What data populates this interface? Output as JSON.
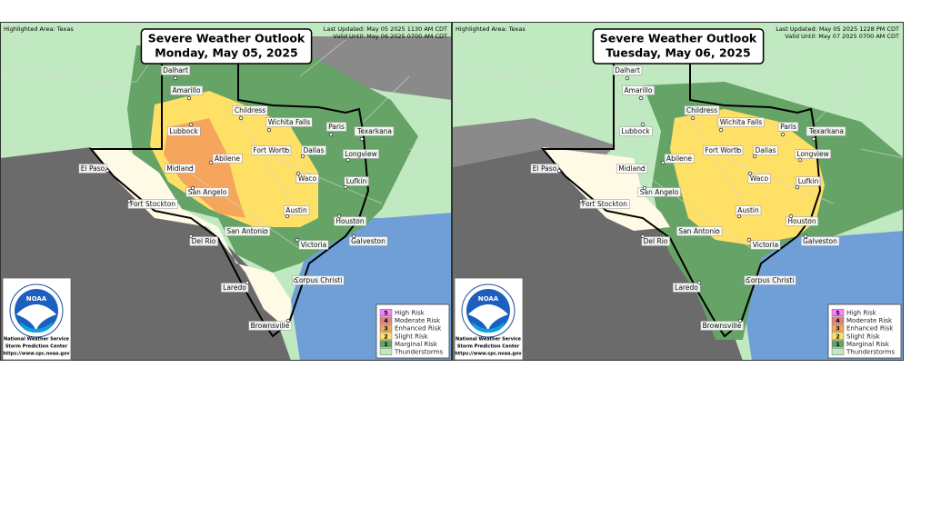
{
  "panels": [
    {
      "highlighted_area": "Highlighted Area: Texas",
      "title": "Severe Weather Outlook",
      "date": "Monday, May 05, 2025",
      "last_updated": "Last Updated: May 05 2025 1130 AM CDT",
      "valid_until": "Valid Until: May 06 2025 0700 AM CDT",
      "cities": [
        "Dalhart",
        "Amarillo",
        "Childress",
        "Wichita Falls",
        "Paris",
        "Texarkana",
        "Lubbock",
        "Fort Worth",
        "Dallas",
        "Longview",
        "El Paso",
        "Midland",
        "Abilene",
        "Waco",
        "Lufkin",
        "San Angelo",
        "Fort Stockton",
        "Austin",
        "Houston",
        "San Antonio",
        "Galveston",
        "Del Rio",
        "Victoria",
        "Corpus Christi",
        "Laredo",
        "Brownsville"
      ],
      "legend": [
        {
          "level": "5",
          "label": "High Risk",
          "color": "#ff7fff"
        },
        {
          "level": "4",
          "label": "Moderate Risk",
          "color": "#e67f7f"
        },
        {
          "level": "3",
          "label": "Enhanced Risk",
          "color": "#f6a65c"
        },
        {
          "level": "2",
          "label": "Slight Risk",
          "color": "#ffe066"
        },
        {
          "level": "1",
          "label": "Marginal Risk",
          "color": "#66a366"
        },
        {
          "label": "Thunderstorms",
          "color": "#c1e9c1"
        }
      ],
      "logo": "NOAA",
      "agency": [
        "National Weather Service",
        "Storm Prediction Center",
        "https://www.spc.noaa.gov"
      ]
    },
    {
      "highlighted_area": "Highlighted Area: Texas",
      "title": "Severe Weather Outlook",
      "date": "Tuesday, May 06, 2025",
      "last_updated": "Last Updated: May 05 2025 1228 PM CDT",
      "valid_until": "Valid Until: May 07 2025 0700 AM CDT",
      "cities": [
        "Dalhart",
        "Amarillo",
        "Childress",
        "Wichita Falls",
        "Paris",
        "Texarkana",
        "Lubbock",
        "Fort Worth",
        "Dallas",
        "Longview",
        "El Paso",
        "Midland",
        "Abilene",
        "Waco",
        "Lufkin",
        "San Angelo",
        "Fort Stockton",
        "Austin",
        "Houston",
        "San Antonio",
        "Galveston",
        "Del Rio",
        "Victoria",
        "Corpus Christi",
        "Laredo",
        "Brownsville"
      ],
      "legend": [
        {
          "level": "5",
          "label": "High Risk",
          "color": "#ff7fff"
        },
        {
          "level": "4",
          "label": "Moderate Risk",
          "color": "#e67f7f"
        },
        {
          "level": "3",
          "label": "Enhanced Risk",
          "color": "#f6a65c"
        },
        {
          "level": "2",
          "label": "Slight Risk",
          "color": "#ffe066"
        },
        {
          "level": "1",
          "label": "Marginal Risk",
          "color": "#66a366"
        },
        {
          "label": "Thunderstorms",
          "color": "#c1e9c1"
        }
      ],
      "logo": "NOAA",
      "agency": [
        "National Weather Service",
        "Storm Prediction Center",
        "https://www.spc.noaa.gov"
      ]
    }
  ]
}
